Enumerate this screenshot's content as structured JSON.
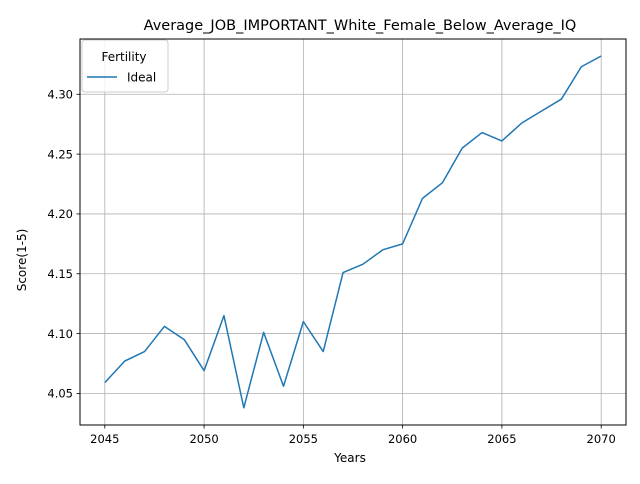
{
  "chart_data": {
    "type": "line",
    "title": "Average_JOB_IMPORTANT_White_Female_Below_Average_IQ",
    "xlabel": "Years",
    "ylabel": "Score(1-5)",
    "xlim": [
      2043.75,
      2071.25
    ],
    "ylim": [
      4.0236,
      4.3462
    ],
    "xticks": [
      2045,
      2050,
      2055,
      2060,
      2065,
      2070
    ],
    "yticks": [
      4.05,
      4.1,
      4.15,
      4.2,
      4.25,
      4.3
    ],
    "ytick_labels": [
      "4.05",
      "4.10",
      "4.15",
      "4.20",
      "4.25",
      "4.30"
    ],
    "grid": true,
    "legend": {
      "title": "Fertility",
      "placement": "top-left"
    },
    "x": [
      2045,
      2046,
      2047,
      2048,
      2049,
      2050,
      2051,
      2052,
      2053,
      2054,
      2055,
      2056,
      2057,
      2058,
      2059,
      2060,
      2061,
      2062,
      2063,
      2064,
      2065,
      2066,
      2067,
      2068,
      2069,
      2070
    ],
    "series": [
      {
        "name": "Ideal",
        "color": "#1f77b4",
        "values": [
          4.059,
          4.077,
          4.085,
          4.106,
          4.095,
          4.069,
          4.115,
          4.038,
          4.101,
          4.056,
          4.11,
          4.085,
          4.151,
          4.158,
          4.17,
          4.175,
          4.213,
          4.226,
          4.255,
          4.268,
          4.261,
          4.276,
          4.286,
          4.296,
          4.323,
          4.332
        ]
      }
    ]
  }
}
